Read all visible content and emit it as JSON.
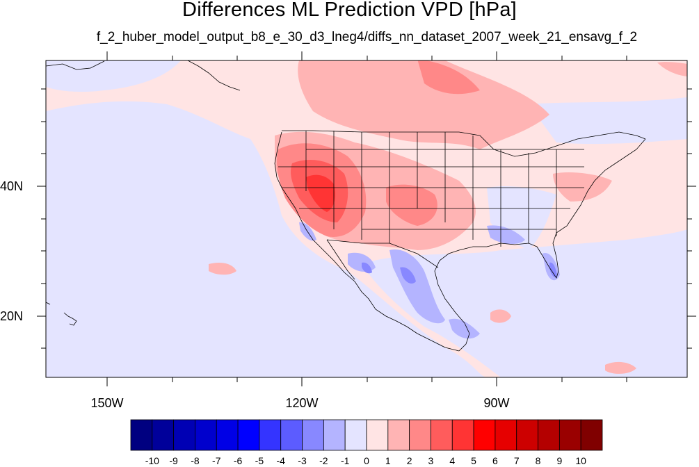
{
  "title": "Differences ML Prediction VPD [hPa]",
  "subtitle": "f_2_huber_model_output_b8_e_30_d3_lneg4/diffs_nn_dataset_2007_week_21_ensavg_f_2",
  "lat_labels": [
    "40N",
    "20N"
  ],
  "lon_labels": [
    "150W",
    "120W",
    "90W"
  ],
  "colorbar": {
    "labels": [
      "-10",
      "-9",
      "-8",
      "-7",
      "-6",
      "-5",
      "-4",
      "-3",
      "-2",
      "-1",
      "0",
      "1",
      "2",
      "3",
      "4",
      "5",
      "6",
      "7",
      "8",
      "9",
      "10"
    ],
    "colors": [
      "#000080",
      "#00009a",
      "#0000b4",
      "#0000cd",
      "#0000e6",
      "#0000ff",
      "#3434ff",
      "#5c5cff",
      "#8888ff",
      "#b4b4ff",
      "#e4e4ff",
      "#ffe4e4",
      "#ffb4b4",
      "#ff8888",
      "#ff5c5c",
      "#ff3434",
      "#ff0000",
      "#e60000",
      "#cd0000",
      "#b40000",
      "#9a0000",
      "#800000"
    ]
  },
  "colors": {
    "background_field": "#ffe4e4",
    "neg_light": "#e4e4ff",
    "neg_mid": "#b4b4ff",
    "neg_strong": "#8888ff",
    "pos_mid": "#ffb4b4",
    "pos_strong": "#ff8888",
    "pos_high": "#ff5c5c",
    "pos_max": "#ff3434"
  }
}
